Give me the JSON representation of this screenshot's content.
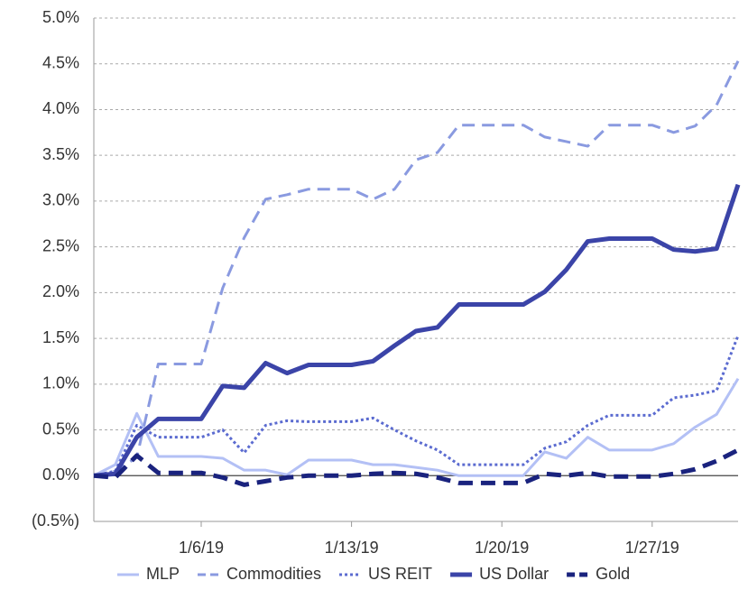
{
  "chart_data": {
    "type": "line",
    "categories": [
      null,
      null,
      null,
      null,
      null,
      "1/6/19",
      null,
      null,
      null,
      null,
      null,
      null,
      "1/13/19",
      null,
      null,
      null,
      null,
      null,
      null,
      "1/20/19",
      null,
      null,
      null,
      null,
      null,
      null,
      "1/27/19",
      null,
      null,
      null,
      null
    ],
    "ylim": [
      -0.5,
      5.0
    ],
    "yticks": [
      {
        "value": -0.5,
        "label": "(0.5%)"
      },
      {
        "value": 0,
        "label": "0.0%"
      },
      {
        "value": 0.5,
        "label": "0.5%"
      },
      {
        "value": 1.0,
        "label": "1.0%"
      },
      {
        "value": 1.5,
        "label": "1.5%"
      },
      {
        "value": 2.0,
        "label": "2.0%"
      },
      {
        "value": 2.5,
        "label": "2.5%"
      },
      {
        "value": 3.0,
        "label": "3.0%"
      },
      {
        "value": 3.5,
        "label": "3.5%"
      },
      {
        "value": 4.0,
        "label": "4.0%"
      },
      {
        "value": 4.5,
        "label": "4.5%"
      },
      {
        "value": 5.0,
        "label": "5.0%"
      }
    ],
    "grid": true,
    "legend": "bottom",
    "series": [
      {
        "name": "MLP",
        "color": "#b3c0f5",
        "style": "solid",
        "bold": false,
        "values": [
          0,
          0.12,
          0.68,
          0.21,
          0.21,
          0.21,
          0.19,
          0.06,
          0.06,
          0.01,
          0.17,
          0.17,
          0.17,
          0.12,
          0.12,
          0.09,
          0.06,
          0,
          0,
          0,
          0,
          0.26,
          0.19,
          0.42,
          0.28,
          0.28,
          0.28,
          0.35,
          0.53,
          0.67,
          1.06
        ]
      },
      {
        "name": "Commodities",
        "color": "#8a9ae0",
        "style": "dashed",
        "bold": false,
        "values": [
          0,
          0.05,
          0.2,
          1.22,
          1.22,
          1.22,
          2.05,
          2.6,
          3.02,
          3.07,
          3.13,
          3.13,
          3.13,
          3.02,
          3.13,
          3.45,
          3.53,
          3.83,
          3.83,
          3.83,
          3.83,
          3.7,
          3.65,
          3.6,
          3.83,
          3.83,
          3.83,
          3.75,
          3.82,
          4.05,
          4.53
        ]
      },
      {
        "name": "US REIT",
        "color": "#5b6bd0",
        "style": "dotted",
        "bold": false,
        "values": [
          0,
          0.05,
          0.55,
          0.42,
          0.42,
          0.42,
          0.5,
          0.25,
          0.55,
          0.6,
          0.59,
          0.59,
          0.59,
          0.63,
          0.5,
          0.38,
          0.28,
          0.12,
          0.12,
          0.12,
          0.12,
          0.3,
          0.37,
          0.55,
          0.66,
          0.66,
          0.66,
          0.85,
          0.88,
          0.93,
          1.53
        ]
      },
      {
        "name": "US Dollar",
        "color": "#3b44a8",
        "style": "solid",
        "bold": true,
        "values": [
          0,
          0.02,
          0.42,
          0.62,
          0.62,
          0.62,
          0.98,
          0.96,
          1.23,
          1.12,
          1.21,
          1.21,
          1.21,
          1.25,
          1.42,
          1.58,
          1.62,
          1.87,
          1.87,
          1.87,
          1.87,
          2.01,
          2.25,
          2.56,
          2.59,
          2.59,
          2.59,
          2.47,
          2.45,
          2.48,
          3.18
        ]
      },
      {
        "name": "Gold",
        "color": "#1a237e",
        "style": "dashed",
        "bold": true,
        "values": [
          0,
          -0.02,
          0.22,
          0.03,
          0.03,
          0.03,
          -0.02,
          -0.1,
          -0.06,
          -0.02,
          0,
          0,
          0,
          0.02,
          0.03,
          0.02,
          -0.02,
          -0.08,
          -0.08,
          -0.08,
          -0.08,
          0.02,
          0,
          0.03,
          -0.01,
          -0.01,
          -0.01,
          0.02,
          0.07,
          0.16,
          0.28
        ]
      }
    ]
  }
}
